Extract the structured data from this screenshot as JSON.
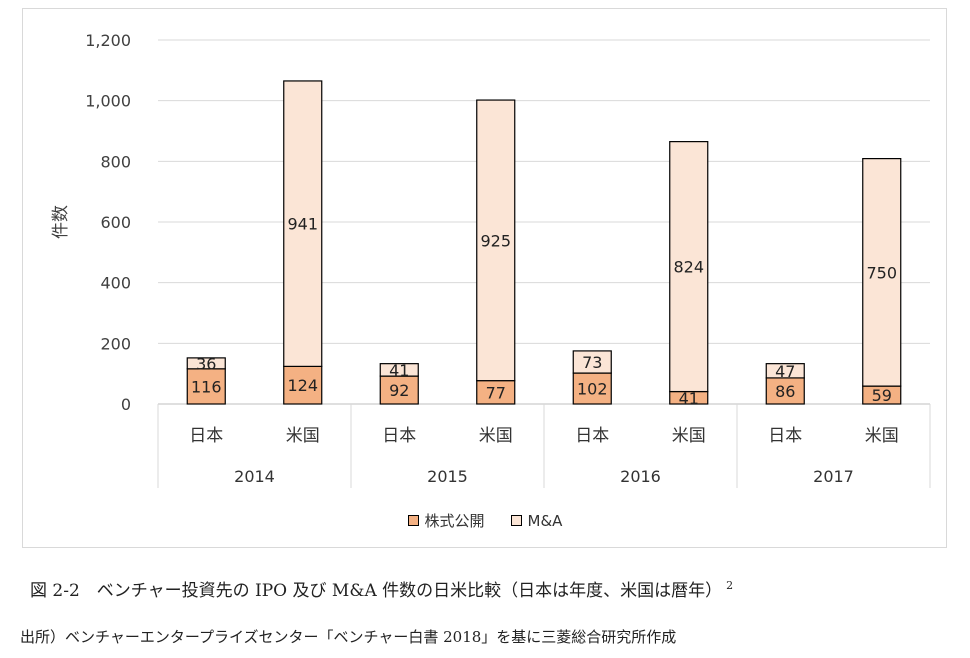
{
  "chart_data": {
    "type": "bar",
    "stacked": true,
    "ylabel": "件数",
    "ylim": [
      0,
      1200
    ],
    "yticks": [
      "0",
      "200",
      "400",
      "600",
      "800",
      "1,000",
      "1,200"
    ],
    "grid": true,
    "legend_position": "bottom",
    "groups": [
      {
        "year": "2014",
        "bars": [
          {
            "label": "日本",
            "values": [
              116,
              36
            ]
          },
          {
            "label": "米国",
            "values": [
              124,
              941
            ]
          }
        ]
      },
      {
        "year": "2015",
        "bars": [
          {
            "label": "日本",
            "values": [
              92,
              41
            ]
          },
          {
            "label": "米国",
            "values": [
              77,
              925
            ]
          }
        ]
      },
      {
        "year": "2016",
        "bars": [
          {
            "label": "日本",
            "values": [
              102,
              73
            ]
          },
          {
            "label": "米国",
            "values": [
              41,
              824
            ]
          }
        ]
      },
      {
        "year": "2017",
        "bars": [
          {
            "label": "日本",
            "values": [
              86,
              47
            ]
          },
          {
            "label": "米国",
            "values": [
              59,
              750
            ]
          }
        ]
      }
    ],
    "series": [
      {
        "name": "株式公開",
        "color": "#f4b183"
      },
      {
        "name": "M&A",
        "color": "#fbe5d6"
      }
    ]
  },
  "legend": {
    "ipo_label": "株式公開",
    "ma_label": "M&A"
  },
  "caption": {
    "text": "図 2-2　ベンチャー投資先の IPO 及び M&A 件数の日米比較（日本は年度、米国は暦年）",
    "footnote": "2"
  },
  "source": {
    "text": "出所）ベンチャーエンタープライズセンター「ベンチャー白書 2018」を基に三菱総合研究所作成"
  }
}
